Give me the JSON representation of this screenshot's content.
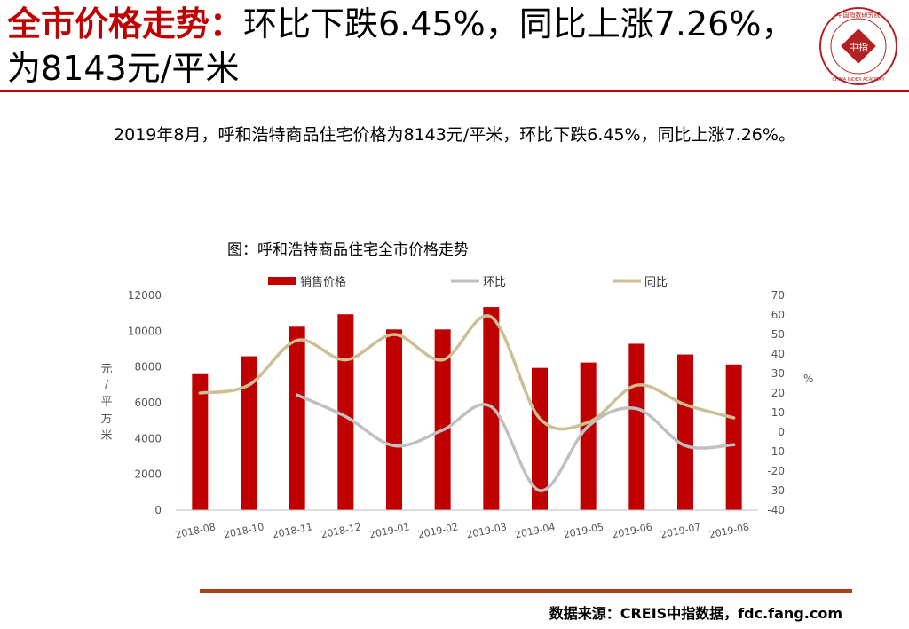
{
  "header": {
    "title_highlight": "全市价格走势：",
    "title_rest": "环比下跌6.45%，同比上涨7.26%，为8143元/平米"
  },
  "logo": {
    "text_top": "中国指数研究院",
    "text_bottom": "CHINA INDEX ACADEMY",
    "center": "中指",
    "color": "#b22222"
  },
  "summary": "2019年8月，呼和浩特商品住宅价格为8143元/平米，环比下跌6.45%，同比上涨7.26%。",
  "footer": {
    "source": "数据来源：CREIS中指数据，fdc.fang.com"
  },
  "chart_data": {
    "type": "bar+line",
    "title": "图：呼和浩特商品住宅全市价格走势",
    "categories": [
      "2018-08",
      "2018-10",
      "2018-11",
      "2018-12",
      "2019-01",
      "2019-02",
      "2019-03",
      "2019-04",
      "2019-05",
      "2019-06",
      "2019-07",
      "2019-08"
    ],
    "left_axis": {
      "label": "元/平方米",
      "min": 0,
      "max": 12000,
      "ticks": [
        0,
        2000,
        4000,
        6000,
        8000,
        10000,
        12000
      ]
    },
    "right_axis": {
      "label": "%",
      "min": -40,
      "max": 70,
      "ticks": [
        -40,
        -30,
        -20,
        -10,
        0,
        10,
        20,
        30,
        40,
        50,
        60,
        70
      ]
    },
    "series": [
      {
        "name": "销售价格",
        "kind": "bar",
        "axis": "left",
        "color": "#c00000",
        "values": [
          7600,
          8600,
          10250,
          10950,
          10100,
          10100,
          11350,
          7950,
          8250,
          9300,
          8700,
          8143
        ]
      },
      {
        "name": "环比",
        "kind": "line",
        "axis": "right",
        "color": "#c0c0c0",
        "values": [
          null,
          null,
          19,
          8,
          -7,
          1,
          13,
          -30,
          3,
          12,
          -7,
          -6.45
        ]
      },
      {
        "name": "同比",
        "kind": "line",
        "axis": "right",
        "color": "#cbbf93",
        "values": [
          20,
          24,
          47,
          37,
          50,
          37,
          59,
          7,
          5,
          24,
          14,
          7.26
        ]
      }
    ],
    "legend_position": "top",
    "grid": false
  }
}
